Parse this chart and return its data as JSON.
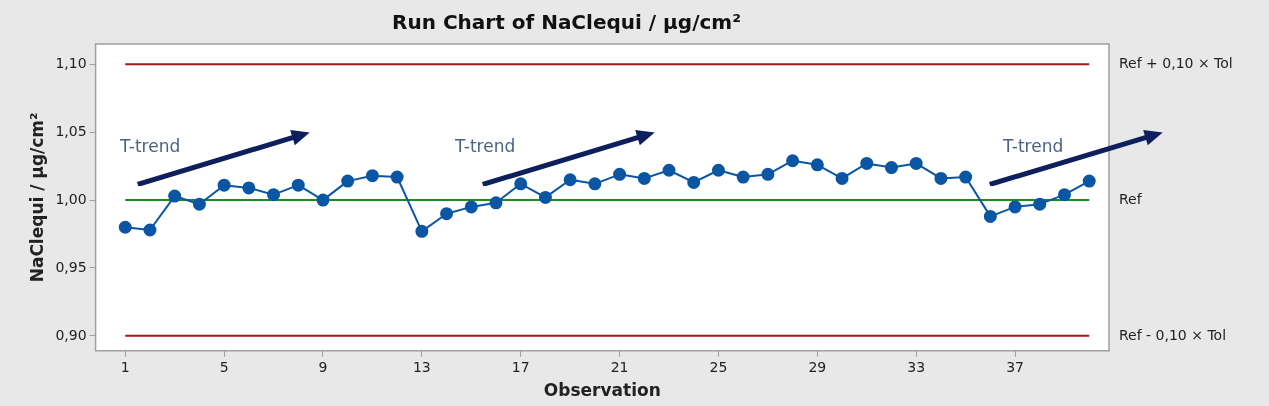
{
  "chart_data": {
    "type": "line",
    "title": "Run Chart of NaClequi / µg/cm²",
    "xlabel": "Observation",
    "ylabel": "NaClequi / µg/cm²",
    "x": [
      1,
      2,
      3,
      4,
      5,
      6,
      7,
      8,
      9,
      10,
      11,
      12,
      13,
      14,
      15,
      16,
      17,
      18,
      19,
      20,
      21,
      22,
      23,
      24,
      25,
      26,
      27,
      28,
      29,
      30,
      31,
      32,
      33,
      34,
      35,
      36,
      37,
      38,
      39,
      40
    ],
    "series": [
      {
        "color": "#0b56a4",
        "values": [
          0.98,
          0.978,
          1.003,
          0.997,
          1.011,
          1.009,
          1.004,
          1.011,
          1.0,
          1.014,
          1.018,
          1.017,
          0.977,
          0.99,
          0.995,
          0.998,
          1.012,
          1.002,
          1.015,
          1.012,
          1.019,
          1.016,
          1.022,
          1.013,
          1.022,
          1.017,
          1.019,
          1.029,
          1.026,
          1.016,
          1.027,
          1.024,
          1.027,
          1.016,
          1.017,
          0.988,
          0.995,
          0.997,
          1.004,
          1.014
        ]
      }
    ],
    "xlim": [
      -0.2,
      40.8
    ],
    "xticks": [
      1,
      5,
      9,
      13,
      17,
      21,
      25,
      29,
      33,
      37
    ],
    "ylim": [
      0.889,
      1.115
    ],
    "yticks": [
      {
        "value": 0.9,
        "label": "0,90"
      },
      {
        "value": 0.95,
        "label": "0,95"
      },
      {
        "value": 1.0,
        "label": "1,00"
      },
      {
        "value": 1.05,
        "label": "1,05"
      },
      {
        "value": 1.1,
        "label": "1,10"
      }
    ],
    "ref_lines": [
      {
        "axis": "y",
        "value": 1.1,
        "label": "Ref + 0,10 × Tol",
        "color": "#a01818"
      },
      {
        "axis": "y",
        "value": 1.0,
        "label": "Ref",
        "color": "#1e8c1e"
      },
      {
        "axis": "y",
        "value": 0.9,
        "label": "Ref - 0,10 × Tol",
        "color": "#a01818"
      }
    ],
    "annotations": [
      "T-trend",
      "T-trend",
      "T-trend"
    ],
    "marker": "circle",
    "line_style": "solid",
    "grid": false,
    "legend": false
  }
}
